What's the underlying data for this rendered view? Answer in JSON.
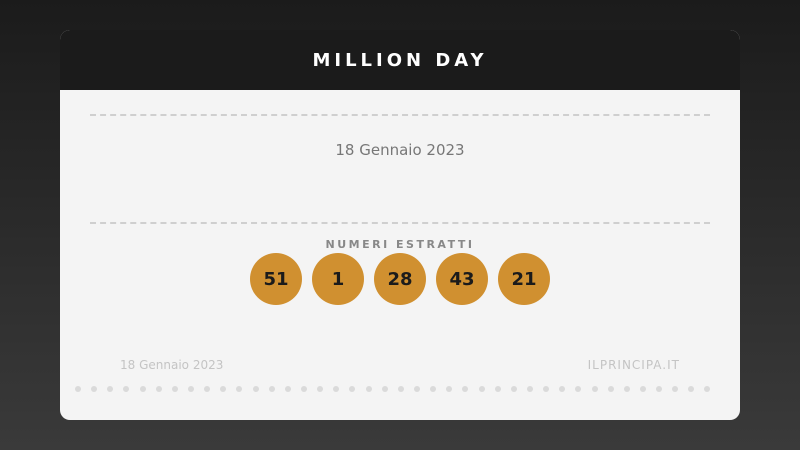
{
  "header": {
    "title": "MILLION DAY"
  },
  "draw": {
    "date": "18 Gennaio 2023",
    "numbers_label": "NUMERI ESTRATTI",
    "numbers": [
      "51",
      "1",
      "28",
      "43",
      "21"
    ]
  },
  "footer": {
    "date": "18 Gennaio 2023",
    "site": "ILPRINCIPA.IT"
  },
  "colors": {
    "ball": "#d09030",
    "header": "#1b1b1b"
  }
}
